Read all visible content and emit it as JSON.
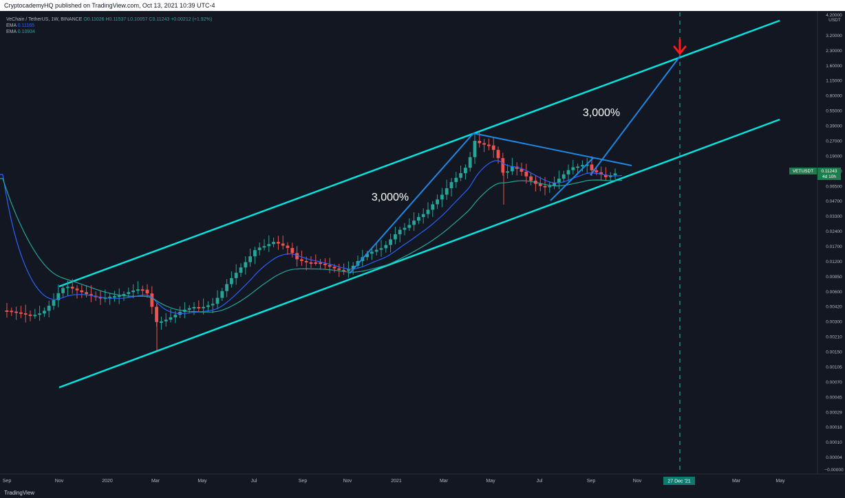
{
  "header": {
    "publish_line": "CryptocademyHQ published on TradingView.com, Oct 13, 2021 10:39 UTC-4"
  },
  "legend": {
    "symbol_line": "VeChain / TetherUS, 1W, BINANCE",
    "ohlc": "O0.11026 H0.11537 L0.10057 C0.11243 +0.00212 (+1.92%)",
    "ema1_label": "EMA",
    "ema1_value": "0.11165",
    "ema2_label": "EMA",
    "ema2_value": "0.10934"
  },
  "price_axis": {
    "currency": "USDT",
    "ticks": [
      "4.20000",
      "3.20000",
      "2.30000",
      "1.60000",
      "1.15000",
      "0.80000",
      "0.55000",
      "0.39000",
      "0.27000",
      "0.19000",
      "0.13000",
      "0.06500",
      "0.04700",
      "0.03300",
      "0.02400",
      "0.01700",
      "0.01200",
      "0.00850",
      "0.00600",
      "0.00420",
      "0.00300",
      "0.00210",
      "0.00150",
      "0.00105",
      "0.00070",
      "0.00045",
      "0.00029",
      "0.00018",
      "0.00010",
      "0.00004",
      "−0.00000"
    ],
    "last_price_tag": "VETUSDT",
    "last_price_value": "0.11243",
    "last_price_countdown": "4d 10h"
  },
  "time_axis": {
    "ticks": [
      "Sep",
      "Nov",
      "2020",
      "Mar",
      "May",
      "Jul",
      "Sep",
      "Nov",
      "2021",
      "Mar",
      "May",
      "Jul",
      "Sep",
      "Nov",
      "Mar",
      "May"
    ],
    "highlight": "27 Dec '21"
  },
  "annotations": {
    "label_1": "3,000%",
    "label_2": "3,000%"
  },
  "colors": {
    "background": "#131722",
    "up_candle": "#26a69a",
    "down_candle": "#ef5350",
    "channel": "#00e5e0",
    "projection": "#1e88e5",
    "arrow": "#ff1a1a",
    "ema_fast": "#2962ff",
    "ema_slow": "#26a69a"
  },
  "footer": {
    "brand": "TradingView"
  },
  "chart_data": {
    "type": "candlestick",
    "title": "VeChain / TetherUS, 1W, BINANCE",
    "y_scale": "log",
    "ylabel": "USDT",
    "ylim": [
      4e-05,
      4.2
    ],
    "series": [
      {
        "name": "VETUSDT",
        "x": [
          "2019-09",
          "2019-10",
          "2019-11",
          "2019-12",
          "2020-01",
          "2020-02",
          "2020-03",
          "2020-04",
          "2020-05",
          "2020-06",
          "2020-07",
          "2020-08",
          "2020-09",
          "2020-10",
          "2020-11",
          "2020-12",
          "2021-01",
          "2021-02",
          "2021-03",
          "2021-04",
          "2021-05",
          "2021-06",
          "2021-07",
          "2021-08",
          "2021-09",
          "2021-10"
        ],
        "close": [
          0.004,
          0.0038,
          0.007,
          0.0055,
          0.006,
          0.007,
          0.0028,
          0.004,
          0.0047,
          0.0095,
          0.019,
          0.017,
          0.013,
          0.011,
          0.01,
          0.017,
          0.028,
          0.05,
          0.08,
          0.22,
          0.12,
          0.08,
          0.065,
          0.12,
          0.13,
          0.1124
        ]
      }
    ]
  }
}
